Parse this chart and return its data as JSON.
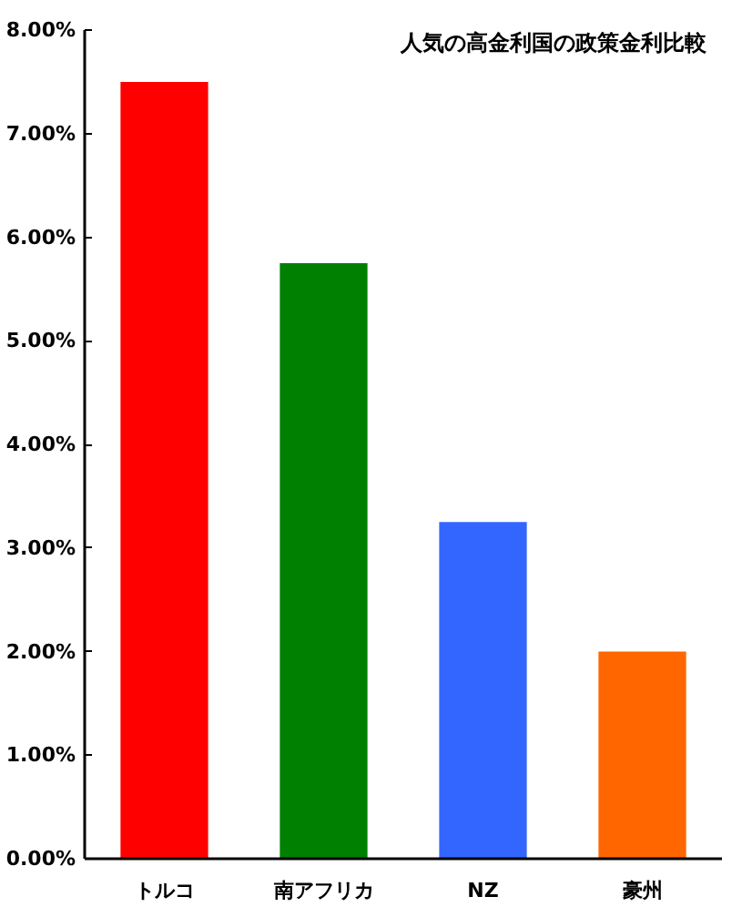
{
  "chart_data": {
    "type": "bar",
    "title": "人気の高金利国の政策金利比較",
    "categories": [
      "トルコ",
      "南アフリカ",
      "NZ",
      "豪州"
    ],
    "values": [
      7.5,
      5.75,
      3.25,
      2.0
    ],
    "colors": [
      "#ff0000",
      "#008000",
      "#3366ff",
      "#ff6600"
    ],
    "ylim": [
      0,
      8
    ],
    "yticks": [
      {
        "value": 0,
        "label": "0.00%"
      },
      {
        "value": 1,
        "label": "1.00%"
      },
      {
        "value": 2,
        "label": "2.00%"
      },
      {
        "value": 3,
        "label": "3.00%"
      },
      {
        "value": 4,
        "label": "4.00%"
      },
      {
        "value": 5,
        "label": "5.00%"
      },
      {
        "value": 6,
        "label": "6.00%"
      },
      {
        "value": 7,
        "label": "7.00%"
      },
      {
        "value": 8,
        "label": "8.00%"
      }
    ],
    "grid": false
  }
}
